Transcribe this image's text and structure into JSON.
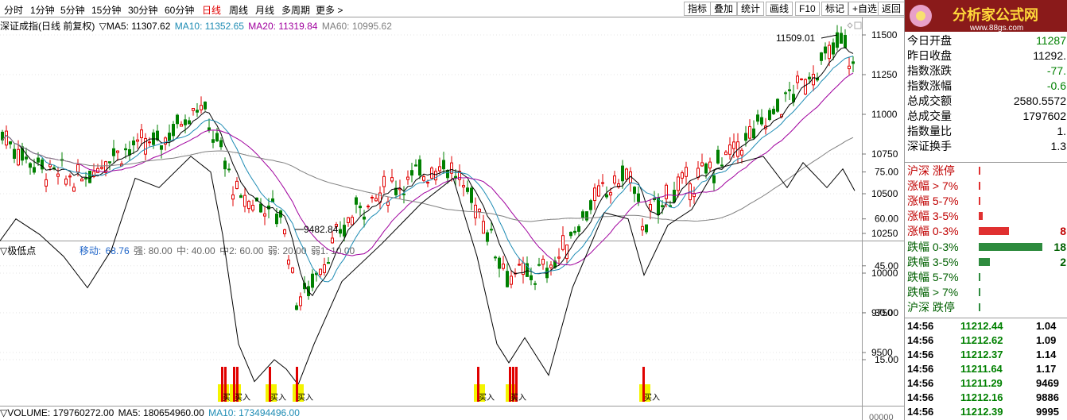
{
  "periods": [
    {
      "label": "分时",
      "active": false
    },
    {
      "label": "1分钟",
      "active": false
    },
    {
      "label": "5分钟",
      "active": false
    },
    {
      "label": "15分钟",
      "active": false
    },
    {
      "label": "30分钟",
      "active": false
    },
    {
      "label": "60分钟",
      "active": false
    },
    {
      "label": "日线",
      "active": true
    },
    {
      "label": "周线",
      "active": false
    },
    {
      "label": "月线",
      "active": false
    },
    {
      "label": "多周期",
      "active": false
    },
    {
      "label": "更多 >",
      "active": false
    }
  ],
  "tools": [
    "指标",
    "叠加",
    "统计",
    "画线",
    "F10",
    "标记",
    "+自选",
    "返回"
  ],
  "main": {
    "title": "深证成指(日线 前复权)",
    "ma5": "▽MA5: 11307.62",
    "ma10": "MA10: 11352.65",
    "ma20": "MA20: 11319.84",
    "ma60": "MA60: 10995.62",
    "high_label": "11509.01",
    "low_label": "9482.84",
    "y_ticks": [
      "11500",
      "11250",
      "11000",
      "10750",
      "10500",
      "10250",
      "10000",
      "9750",
      "9500"
    ]
  },
  "indicator": {
    "name": "▽极低点",
    "move_label": "移动:",
    "move_value": "68.76",
    "strong": "强: 80.00",
    "mid": "中: 40.00",
    "mid2": "中2: 60.00",
    "weak": "弱: 20.00",
    "weak1": "弱1: 10.00",
    "y_ticks": [
      "75.00",
      "60.00",
      "45.00",
      "30.00",
      "15.00"
    ],
    "buy_label": "买入"
  },
  "volume": {
    "label": "▽VOLUME: 179760272.00",
    "ma5": "MA5: 180654960.00",
    "ma10": "MA10: 173494496.00",
    "partial_tick": "00000"
  },
  "colors": {
    "up": "#e00000",
    "down": "#008000",
    "ma5": "#000000",
    "ma10": "#1e8cb4",
    "ma20": "#a0009e",
    "ma60": "#808080",
    "accent_blue": "#1e64c8"
  },
  "logo": {
    "text": "分析家公式网",
    "url": "www.88gs.com"
  },
  "stats": [
    {
      "label": "今日开盘",
      "value": "11287",
      "color": "#008000"
    },
    {
      "label": "昨日收盘",
      "value": "11292.",
      "color": "#000000"
    },
    {
      "label": "指数涨跌",
      "value": "-77.",
      "color": "#008000"
    },
    {
      "label": "指数涨幅",
      "value": "-0.6",
      "color": "#008000"
    },
    {
      "label": "总成交额",
      "value": "2580.5572",
      "color": "#000000"
    },
    {
      "label": "总成交量",
      "value": "1797602",
      "color": "#000000"
    },
    {
      "label": "指数量比",
      "value": "1.",
      "color": "#000000"
    },
    {
      "label": "深证换手",
      "value": "1.3",
      "color": "#000000"
    }
  ],
  "dist": [
    {
      "label": "沪深 涨停",
      "bar": 0.01,
      "color": "#e03030",
      "value": ""
    },
    {
      "label": "涨幅 > 7%",
      "bar": 0.01,
      "color": "#e03030",
      "value": ""
    },
    {
      "label": "涨幅 5-7%",
      "bar": 0.01,
      "color": "#e03030",
      "value": ""
    },
    {
      "label": "涨幅 3-5%",
      "bar": 0.06,
      "color": "#e03030",
      "value": ""
    },
    {
      "label": "涨幅 0-3%",
      "bar": 0.47,
      "color": "#e03030",
      "value": "8"
    },
    {
      "label": "跌幅 0-3%",
      "bar": 1.0,
      "color": "#2e8b3e",
      "value": "18"
    },
    {
      "label": "跌幅 3-5%",
      "bar": 0.17,
      "color": "#2e8b3e",
      "value": "2"
    },
    {
      "label": "跌幅 5-7%",
      "bar": 0.01,
      "color": "#2e8b3e",
      "value": ""
    },
    {
      "label": "跌幅 > 7%",
      "bar": 0.01,
      "color": "#2e8b3e",
      "value": ""
    },
    {
      "label": "沪深 跌停",
      "bar": 0.01,
      "color": "#2e8b3e",
      "value": ""
    }
  ],
  "ticks": [
    {
      "time": "14:56",
      "price": "11212.44",
      "vol": "1.04"
    },
    {
      "time": "14:56",
      "price": "11212.62",
      "vol": "1.09"
    },
    {
      "time": "14:56",
      "price": "11212.37",
      "vol": "1.14"
    },
    {
      "time": "14:56",
      "price": "11211.64",
      "vol": "1.17"
    },
    {
      "time": "14:56",
      "price": "11211.29",
      "vol": "9469"
    },
    {
      "time": "14:56",
      "price": "11212.16",
      "vol": "9886"
    },
    {
      "time": "14:56",
      "price": "11212.39",
      "vol": "9995"
    }
  ]
}
